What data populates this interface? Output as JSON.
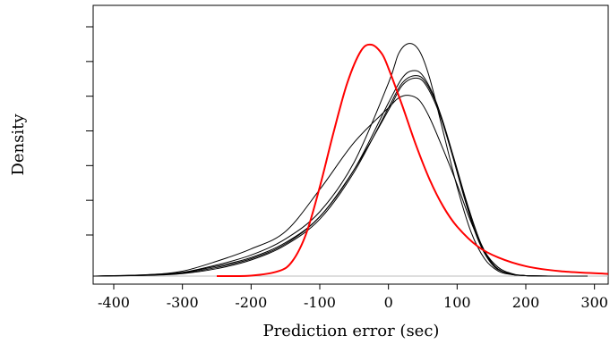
{
  "chart_data": {
    "type": "line",
    "title": "",
    "xlabel": "Prediction error (sec)",
    "ylabel": "Density",
    "xlim": [
      -430,
      320
    ],
    "ylim": [
      0,
      1.0
    ],
    "grid": false,
    "legend": "none",
    "x_ticks": [
      -400,
      -300,
      -200,
      -100,
      0,
      100,
      200,
      300
    ],
    "x_tick_labels": [
      "-400",
      "-300",
      "-200",
      "-100",
      "0",
      "100",
      "200",
      "300"
    ],
    "y_tick_count": 7,
    "baseline": 0,
    "series": [
      {
        "color": "#ff0000",
        "x": [
          -250,
          -200,
          -160,
          -140,
          -120,
          -100,
          -80,
          -60,
          -40,
          -25,
          -10,
          0,
          20,
          40,
          60,
          80,
          100,
          130,
          160,
          200,
          250,
          320
        ],
        "y": [
          0.0,
          0.002,
          0.02,
          0.06,
          0.17,
          0.36,
          0.58,
          0.78,
          0.91,
          0.935,
          0.9,
          0.84,
          0.69,
          0.53,
          0.39,
          0.28,
          0.2,
          0.12,
          0.075,
          0.04,
          0.02,
          0.009
        ]
      },
      {
        "color": "#000000",
        "x": [
          -430,
          -350,
          -300,
          -250,
          -200,
          -150,
          -100,
          -50,
          0,
          15,
          30,
          45,
          60,
          80,
          100,
          120,
          140,
          160,
          180,
          200,
          250,
          290
        ],
        "y": [
          0.0,
          0.005,
          0.015,
          0.045,
          0.085,
          0.15,
          0.26,
          0.46,
          0.78,
          0.9,
          0.94,
          0.91,
          0.8,
          0.58,
          0.36,
          0.18,
          0.07,
          0.02,
          0.006,
          0.002,
          0.0,
          0.0
        ]
      },
      {
        "color": "#000000",
        "x": [
          -430,
          -350,
          -300,
          -250,
          -200,
          -150,
          -100,
          -50,
          0,
          20,
          35,
          50,
          70,
          90,
          110,
          130,
          150,
          170,
          200,
          250,
          290
        ],
        "y": [
          0.0,
          0.004,
          0.014,
          0.04,
          0.075,
          0.135,
          0.24,
          0.43,
          0.7,
          0.8,
          0.83,
          0.81,
          0.7,
          0.52,
          0.32,
          0.15,
          0.05,
          0.014,
          0.002,
          0.0,
          0.0
        ]
      },
      {
        "color": "#000000",
        "x": [
          -430,
          -350,
          -300,
          -250,
          -200,
          -150,
          -100,
          -50,
          0,
          20,
          40,
          55,
          75,
          95,
          115,
          135,
          155,
          175,
          200,
          250,
          290
        ],
        "y": [
          0.0,
          0.003,
          0.01,
          0.03,
          0.065,
          0.125,
          0.23,
          0.42,
          0.68,
          0.78,
          0.81,
          0.78,
          0.66,
          0.48,
          0.29,
          0.13,
          0.04,
          0.01,
          0.002,
          0.0,
          0.0
        ]
      },
      {
        "color": "#000000",
        "x": [
          -430,
          -350,
          -300,
          -250,
          -200,
          -150,
          -100,
          -50,
          0,
          20,
          40,
          55,
          75,
          95,
          115,
          135,
          155,
          175,
          200,
          250,
          290
        ],
        "y": [
          0.0,
          0.004,
          0.012,
          0.035,
          0.07,
          0.13,
          0.24,
          0.43,
          0.67,
          0.77,
          0.8,
          0.77,
          0.65,
          0.47,
          0.28,
          0.12,
          0.04,
          0.01,
          0.002,
          0.0,
          0.0
        ]
      },
      {
        "color": "#000000",
        "x": [
          -430,
          -350,
          -300,
          -250,
          -200,
          -150,
          -100,
          -50,
          0,
          15,
          30,
          45,
          60,
          80,
          100,
          120,
          140,
          160,
          180,
          200,
          250,
          290
        ],
        "y": [
          0.0,
          0.006,
          0.02,
          0.06,
          0.11,
          0.18,
          0.35,
          0.54,
          0.68,
          0.72,
          0.73,
          0.71,
          0.64,
          0.51,
          0.37,
          0.22,
          0.1,
          0.035,
          0.01,
          0.002,
          0.0,
          0.0
        ]
      }
    ]
  }
}
